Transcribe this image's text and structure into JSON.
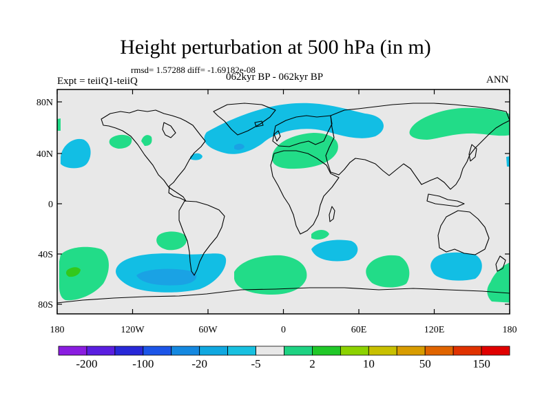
{
  "title": "Height perturbation at 500 hPa (in m)",
  "stats": "rmsd= 1.57288 diff= -1.69182e-08",
  "experiment": "Expt = teiiQ1-teiiQ",
  "period": "062kyr BP - 062kyr BP",
  "season": "ANN",
  "lat_ticks": [
    "80N",
    "40N",
    "0",
    "40S",
    "80S"
  ],
  "lon_ticks": [
    "180",
    "120W",
    "60W",
    "0",
    "60E",
    "120E",
    "180"
  ],
  "colorbar": {
    "labels": [
      "-200",
      "-100",
      "-20",
      "-5",
      "2",
      "10",
      "50",
      "150"
    ],
    "colors": [
      "#8a1de0",
      "#5a1ee0",
      "#2828d8",
      "#1c55e8",
      "#1488e0",
      "#10a8e0",
      "#18c0e0",
      "#e8e8e8",
      "#1ed282",
      "#20c828",
      "#8cd200",
      "#c8c000",
      "#d89c00",
      "#e06400",
      "#e03200",
      "#e00000"
    ]
  },
  "map": {
    "ocean_color": "#e8e8e8",
    "positive_color": "#22dc88",
    "positive_strong_color": "#33c81c",
    "negative_color": "#12bee4",
    "negative_strong_color": "#1aa2e4"
  }
}
